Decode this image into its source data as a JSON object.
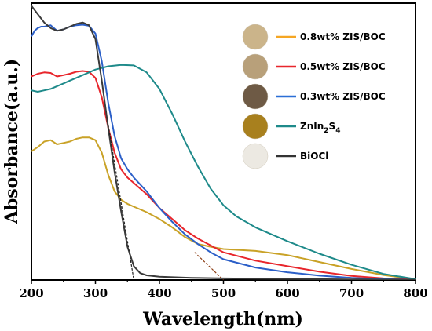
{
  "chart_data": {
    "type": "line",
    "xlabel": "Wavelength(nm)",
    "ylabel": "Absorbance(a.u.)",
    "xlim": [
      200,
      800
    ],
    "ylim": [
      0,
      1
    ],
    "x_ticks": [
      "200",
      "300",
      "400",
      "500",
      "600",
      "700",
      "800"
    ],
    "grid": false,
    "legend_position": "top-right",
    "series": [
      {
        "name": "0.8wt% ZIS/BOC",
        "color": "#c9a227",
        "legend_color": "#f5a623",
        "swatch": "#cbb48a",
        "points": [
          [
            200,
            0.465
          ],
          [
            210,
            0.48
          ],
          [
            220,
            0.5
          ],
          [
            230,
            0.505
          ],
          [
            240,
            0.49
          ],
          [
            250,
            0.495
          ],
          [
            260,
            0.5
          ],
          [
            270,
            0.51
          ],
          [
            280,
            0.515
          ],
          [
            290,
            0.515
          ],
          [
            300,
            0.505
          ],
          [
            310,
            0.46
          ],
          [
            320,
            0.38
          ],
          [
            330,
            0.32
          ],
          [
            340,
            0.29
          ],
          [
            350,
            0.275
          ],
          [
            360,
            0.265
          ],
          [
            380,
            0.245
          ],
          [
            400,
            0.22
          ],
          [
            420,
            0.19
          ],
          [
            440,
            0.155
          ],
          [
            460,
            0.13
          ],
          [
            480,
            0.12
          ],
          [
            500,
            0.112
          ],
          [
            550,
            0.105
          ],
          [
            600,
            0.09
          ],
          [
            650,
            0.065
          ],
          [
            700,
            0.04
          ],
          [
            750,
            0.018
          ],
          [
            800,
            0.002
          ]
        ]
      },
      {
        "name": "0.5wt% ZIS/BOC",
        "color": "#e8262c",
        "legend_color": "#e8262c",
        "swatch": "#b8a07a",
        "points": [
          [
            200,
            0.735
          ],
          [
            210,
            0.745
          ],
          [
            220,
            0.75
          ],
          [
            230,
            0.748
          ],
          [
            240,
            0.735
          ],
          [
            250,
            0.74
          ],
          [
            260,
            0.745
          ],
          [
            270,
            0.752
          ],
          [
            280,
            0.755
          ],
          [
            290,
            0.752
          ],
          [
            300,
            0.73
          ],
          [
            310,
            0.66
          ],
          [
            320,
            0.55
          ],
          [
            330,
            0.46
          ],
          [
            340,
            0.4
          ],
          [
            350,
            0.37
          ],
          [
            360,
            0.35
          ],
          [
            380,
            0.31
          ],
          [
            400,
            0.26
          ],
          [
            420,
            0.22
          ],
          [
            440,
            0.18
          ],
          [
            460,
            0.15
          ],
          [
            480,
            0.125
          ],
          [
            500,
            0.1
          ],
          [
            550,
            0.07
          ],
          [
            600,
            0.05
          ],
          [
            650,
            0.03
          ],
          [
            700,
            0.015
          ],
          [
            750,
            0.006
          ],
          [
            800,
            0.001
          ]
        ]
      },
      {
        "name": "0.3wt% ZIS/BOC",
        "color": "#2b5fc8",
        "legend_color": "#2b6fd6",
        "swatch": "#6e5a45",
        "points": [
          [
            200,
            0.88
          ],
          [
            205,
            0.9
          ],
          [
            210,
            0.91
          ],
          [
            215,
            0.915
          ],
          [
            220,
            0.915
          ],
          [
            230,
            0.92
          ],
          [
            240,
            0.9
          ],
          [
            250,
            0.905
          ],
          [
            260,
            0.915
          ],
          [
            270,
            0.92
          ],
          [
            280,
            0.922
          ],
          [
            290,
            0.918
          ],
          [
            300,
            0.89
          ],
          [
            310,
            0.79
          ],
          [
            320,
            0.64
          ],
          [
            330,
            0.52
          ],
          [
            340,
            0.44
          ],
          [
            350,
            0.4
          ],
          [
            360,
            0.37
          ],
          [
            380,
            0.32
          ],
          [
            400,
            0.26
          ],
          [
            420,
            0.21
          ],
          [
            440,
            0.165
          ],
          [
            460,
            0.13
          ],
          [
            480,
            0.1
          ],
          [
            500,
            0.075
          ],
          [
            550,
            0.045
          ],
          [
            600,
            0.028
          ],
          [
            650,
            0.016
          ],
          [
            700,
            0.008
          ],
          [
            750,
            0.003
          ],
          [
            800,
            0.001
          ]
        ]
      },
      {
        "name": "ZnIn2S4",
        "color": "#1e8a8a",
        "legend_color": "#1e8a8a",
        "swatch": "#a8801e",
        "points": [
          [
            200,
            0.685
          ],
          [
            210,
            0.68
          ],
          [
            220,
            0.685
          ],
          [
            230,
            0.69
          ],
          [
            240,
            0.7
          ],
          [
            250,
            0.71
          ],
          [
            260,
            0.72
          ],
          [
            270,
            0.73
          ],
          [
            280,
            0.74
          ],
          [
            290,
            0.75
          ],
          [
            300,
            0.76
          ],
          [
            320,
            0.772
          ],
          [
            340,
            0.777
          ],
          [
            360,
            0.775
          ],
          [
            380,
            0.75
          ],
          [
            400,
            0.69
          ],
          [
            420,
            0.6
          ],
          [
            440,
            0.5
          ],
          [
            460,
            0.41
          ],
          [
            480,
            0.33
          ],
          [
            500,
            0.27
          ],
          [
            520,
            0.23
          ],
          [
            550,
            0.19
          ],
          [
            600,
            0.14
          ],
          [
            650,
            0.095
          ],
          [
            700,
            0.055
          ],
          [
            750,
            0.022
          ],
          [
            800,
            0.003
          ]
        ]
      },
      {
        "name": "BiOCl",
        "color": "#3a3a3a",
        "legend_color": "#333333",
        "swatch": "#ece9e2",
        "points": [
          [
            200,
            0.99
          ],
          [
            210,
            0.96
          ],
          [
            220,
            0.93
          ],
          [
            230,
            0.91
          ],
          [
            240,
            0.9
          ],
          [
            250,
            0.905
          ],
          [
            260,
            0.915
          ],
          [
            270,
            0.925
          ],
          [
            280,
            0.93
          ],
          [
            290,
            0.92
          ],
          [
            300,
            0.87
          ],
          [
            310,
            0.72
          ],
          [
            320,
            0.55
          ],
          [
            330,
            0.39
          ],
          [
            340,
            0.25
          ],
          [
            350,
            0.12
          ],
          [
            360,
            0.05
          ],
          [
            370,
            0.025
          ],
          [
            380,
            0.017
          ],
          [
            400,
            0.012
          ],
          [
            450,
            0.008
          ],
          [
            500,
            0.006
          ],
          [
            600,
            0.004
          ],
          [
            700,
            0.002
          ],
          [
            800,
            0.001
          ]
        ]
      }
    ],
    "tangent_lines": [
      {
        "from": [
          320,
          0.56
        ],
        "to": [
          360,
          0.0
        ],
        "color": "#222222"
      },
      {
        "from": [
          455,
          0.1
        ],
        "to": [
          500,
          0.0
        ],
        "color": "#8b3a10"
      }
    ]
  }
}
